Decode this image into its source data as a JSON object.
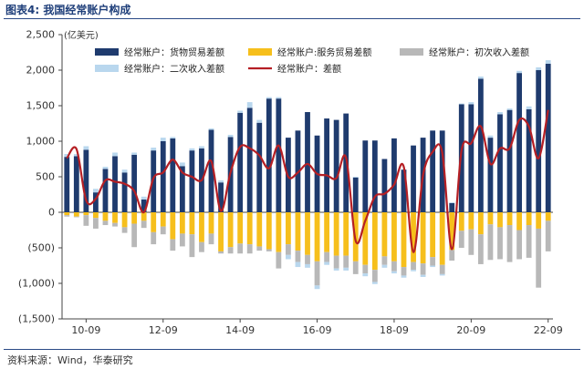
{
  "figure": {
    "title": "图表4:  我国经常账户构成",
    "source": "资料来源：Wind，华泰研究"
  },
  "chart_data": {
    "type": "bar",
    "stacked": true,
    "unit_label": "(亿美元)",
    "ylim": [
      -1500,
      2500
    ],
    "y_ticks": [
      2500,
      2000,
      1500,
      1000,
      500,
      0,
      -500,
      -1000,
      -1500
    ],
    "y_tick_labels": [
      "2,500",
      "2,000",
      "1,500",
      "1,000",
      "500",
      "0",
      "(500)",
      "(1,000)",
      "(1,500)"
    ],
    "x_tick_labels": [
      "10-09",
      "12-09",
      "14-09",
      "16-09",
      "18-09",
      "20-09",
      "22-09"
    ],
    "categories": [
      "10-03",
      "10-06",
      "10-09",
      "10-12",
      "11-03",
      "11-06",
      "11-09",
      "11-12",
      "12-03",
      "12-06",
      "12-09",
      "12-12",
      "13-03",
      "13-06",
      "13-09",
      "13-12",
      "14-03",
      "14-06",
      "14-09",
      "14-12",
      "15-03",
      "15-06",
      "15-09",
      "15-12",
      "16-03",
      "16-06",
      "16-09",
      "16-12",
      "17-03",
      "17-06",
      "17-09",
      "17-12",
      "18-03",
      "18-06",
      "18-09",
      "18-12",
      "19-03",
      "19-06",
      "19-09",
      "19-12",
      "20-03",
      "20-06",
      "20-09",
      "20-12",
      "21-03",
      "21-06",
      "21-09",
      "21-12",
      "22-03",
      "22-06",
      "22-09"
    ],
    "legend_position": "top",
    "colors": {
      "goods": "#1f3b6e",
      "services": "#f6bf1c",
      "primary_income": "#b8b8b8",
      "secondary_income": "#b9d7ee",
      "current_account": "#b51f24"
    },
    "series": [
      {
        "name": "经常账户：货物贸易差额",
        "key": "goods",
        "kind": "bar",
        "values": [
          780,
          790,
          880,
          280,
          610,
          790,
          560,
          810,
          180,
          870,
          1000,
          1040,
          650,
          870,
          900,
          1160,
          420,
          1060,
          1400,
          1470,
          1260,
          1600,
          1600,
          1050,
          1150,
          1410,
          1080,
          1320,
          1300,
          1390,
          490,
          1010,
          1010,
          750,
          1040,
          600,
          940,
          1050,
          1150,
          1150,
          130,
          1520,
          1520,
          1880,
          1050,
          1380,
          1440,
          1960,
          1450,
          2000,
          2090
        ]
      },
      {
        "name": "经常账户:服务贸易差额",
        "key": "services",
        "kind": "bar",
        "values": [
          -40,
          -60,
          -40,
          -80,
          -120,
          -150,
          -210,
          -160,
          -120,
          -280,
          -200,
          -380,
          -300,
          -310,
          -420,
          -300,
          -550,
          -490,
          -440,
          -450,
          -480,
          -520,
          -560,
          -450,
          -540,
          -600,
          -690,
          -560,
          -610,
          -610,
          -690,
          -740,
          -810,
          -620,
          -690,
          -770,
          -700,
          -720,
          -630,
          -740,
          -530,
          -260,
          -240,
          -310,
          -170,
          -210,
          -180,
          -250,
          -180,
          -230,
          -120
        ]
      },
      {
        "name": "经常账户：初次收入差额",
        "key": "primary_income",
        "kind": "bar",
        "values": [
          -20,
          -10,
          -150,
          -150,
          -60,
          -50,
          -80,
          -330,
          -100,
          -170,
          -110,
          -160,
          -180,
          -320,
          -140,
          -150,
          -30,
          -90,
          -140,
          -130,
          -60,
          -30,
          -230,
          -150,
          -160,
          -130,
          -340,
          -140,
          -180,
          -170,
          -180,
          -120,
          -170,
          -120,
          -140,
          -120,
          -110,
          -160,
          -120,
          -130,
          -150,
          -240,
          -360,
          -420,
          -500,
          -450,
          -520,
          -410,
          -460,
          -830,
          -430
        ]
      },
      {
        "name": "经常账户：二次收入差额",
        "key": "secondary_income",
        "kind": "bar",
        "values": [
          40,
          30,
          50,
          50,
          30,
          50,
          40,
          30,
          40,
          40,
          50,
          20,
          50,
          30,
          30,
          20,
          30,
          30,
          30,
          80,
          40,
          20,
          20,
          -60,
          -70,
          -50,
          -50,
          -40,
          -30,
          -40,
          10,
          -40,
          -30,
          -40,
          -30,
          -30,
          -20,
          -30,
          -20,
          -20,
          10,
          10,
          30,
          30,
          30,
          30,
          20,
          30,
          40,
          40,
          50
        ]
      },
      {
        "name": "经常账户：差额",
        "key": "current_account",
        "kind": "line",
        "values": [
          760,
          890,
          170,
          190,
          450,
          430,
          400,
          300,
          0,
          480,
          560,
          740,
          560,
          500,
          450,
          720,
          20,
          560,
          920,
          900,
          800,
          620,
          940,
          500,
          560,
          680,
          540,
          520,
          480,
          770,
          -400,
          -120,
          220,
          260,
          390,
          640,
          -560,
          520,
          850,
          840,
          -520,
          870,
          970,
          1210,
          680,
          900,
          900,
          1300,
          1210,
          760,
          1440
        ]
      }
    ]
  }
}
